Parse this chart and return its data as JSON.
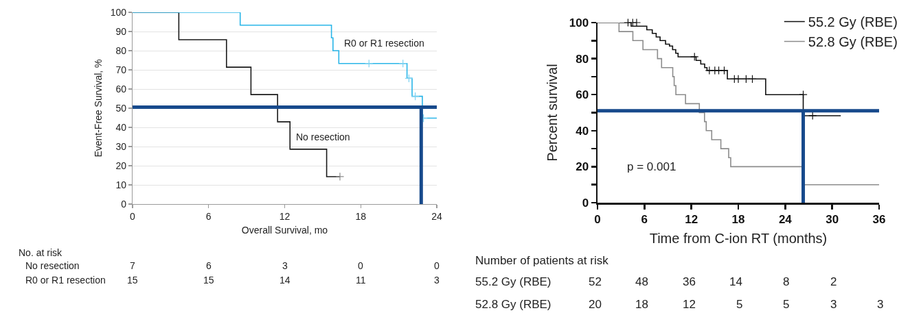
{
  "chart_data": [
    {
      "type": "step",
      "xlabel": "Overall Survival, mo",
      "ylabel": "Event-Free Survival, %",
      "xlim": [
        0,
        24
      ],
      "xticks": [
        0,
        6,
        12,
        18,
        24
      ],
      "ylim": [
        0,
        100
      ],
      "yticks": [
        0,
        10,
        20,
        30,
        40,
        50,
        60,
        70,
        80,
        90,
        100
      ],
      "grid": "y",
      "legend": false,
      "series": [
        {
          "marker": "none",
          "name": "No resection",
          "color": "#1a1a1a",
          "x": [
            0,
            3.65,
            7.41,
            9.34,
            11.44,
            12.42,
            15.31,
            16.36
          ],
          "values": [
            100,
            85.7,
            71.4,
            57.1,
            42.9,
            28.6,
            14.3,
            14.3
          ]
        },
        {
          "marker": "none",
          "name": "R0 or R1 resection",
          "color": "#29b5e8",
          "x": [
            0,
            8.49,
            15.69,
            15.81,
            16.27,
            21.65,
            22.05,
            22.86,
            24
          ],
          "values": [
            100,
            93.3,
            86.7,
            80,
            73.3,
            65.6,
            56.2,
            44.8,
            44.8
          ]
        },
        {
          "type": "scatter",
          "marker": "cross",
          "color": "#8c8c8c",
          "x": [
            16.36
          ],
          "values": [
            14.3
          ]
        },
        {
          "type": "scatter",
          "marker": "cross",
          "color": "#7fd3f2",
          "x": [
            18.65,
            21.33,
            21.8,
            22.3,
            22.95
          ],
          "values": [
            73.3,
            73.3,
            65.6,
            56.2,
            44.8
          ]
        }
      ],
      "ref_lines": [
        {
          "axis": "y",
          "value": 50.5,
          "color": "#174a8c"
        },
        {
          "axis": "x",
          "value": 22.77,
          "color": "#174a8c"
        }
      ],
      "annotations": [
        "No. at risk",
        "No resection",
        "7",
        "6",
        "3",
        "0",
        "0",
        "R0 or R1 resection",
        "15",
        "15",
        "14",
        "11",
        "3"
      ]
    },
    {
      "type": "step",
      "xlabel": "Time from C-ion RT (months)",
      "ylabel": "Percent survival",
      "xlim": [
        0,
        36
      ],
      "xticks": [
        0,
        6,
        12,
        18,
        24,
        30,
        36
      ],
      "ylim": [
        0,
        100
      ],
      "yticks": [
        0,
        {
          "value": 10,
          "label": null
        },
        20,
        {
          "value": 30,
          "label": null
        },
        40,
        {
          "value": 50,
          "label": null
        },
        60,
        {
          "value": 70,
          "label": null
        },
        80,
        {
          "value": 90,
          "label": null
        },
        100
      ],
      "grid": false,
      "legend": "top right",
      "series": [
        {
          "marker": "none",
          "name": "55.2 Gy (RBE)",
          "color": "#111111",
          "x": [
            0,
            4.3,
            6.3,
            7.0,
            7.5,
            8.0,
            8.7,
            9.2,
            9.6,
            10.0,
            10.3,
            12.6,
            13.2,
            13.7,
            14.0,
            16.6,
            21.5,
            26.3,
            31.1
          ],
          "values": [
            100,
            98,
            96,
            94,
            92,
            90,
            88,
            87,
            85,
            83,
            81,
            79,
            77,
            75,
            73.4,
            68.7,
            60,
            48.3,
            48.3
          ]
        },
        {
          "marker": "none",
          "name": "52.8 Gy (RBE)",
          "color": "#8c8c8c",
          "x": [
            0,
            2.75,
            4.52,
            5.81,
            7.67,
            8.19,
            9.62,
            9.8,
            10.02,
            11.25,
            13.02,
            13.68,
            13.9,
            14.6,
            15.77,
            16.77,
            17.03,
            26.2,
            36
          ],
          "values": [
            100,
            95,
            90,
            85,
            80,
            75,
            70,
            65,
            60,
            55,
            50,
            45,
            40,
            35,
            30,
            25,
            20,
            10,
            10
          ]
        },
        {
          "type": "scatter",
          "marker": "cross",
          "color": "#111111",
          "x": [
            3.9,
            4.5,
            5.0,
            12.4,
            14.3,
            15.0,
            15.5,
            16.2,
            17.5,
            18.0,
            19.0,
            19.8,
            26.3,
            27.5
          ],
          "values": [
            100,
            100,
            100,
            81,
            73.4,
            73.4,
            73.4,
            73.4,
            68.7,
            68.7,
            68.7,
            68.7,
            60,
            48.3
          ]
        }
      ],
      "ref_lines": [
        {
          "axis": "y",
          "value": 51,
          "color": "#174a8c"
        },
        {
          "axis": "x",
          "value": 26.3,
          "color": "#174a8c"
        }
      ],
      "annotations": [
        "p = 0.001",
        "Number of patients at risk",
        "55.2 Gy (RBE)",
        "52",
        "48",
        "36",
        "14",
        "8",
        "2",
        "52.8 Gy (RBE)",
        "20",
        "18",
        "12",
        "5",
        "5",
        "3",
        "3"
      ]
    }
  ]
}
